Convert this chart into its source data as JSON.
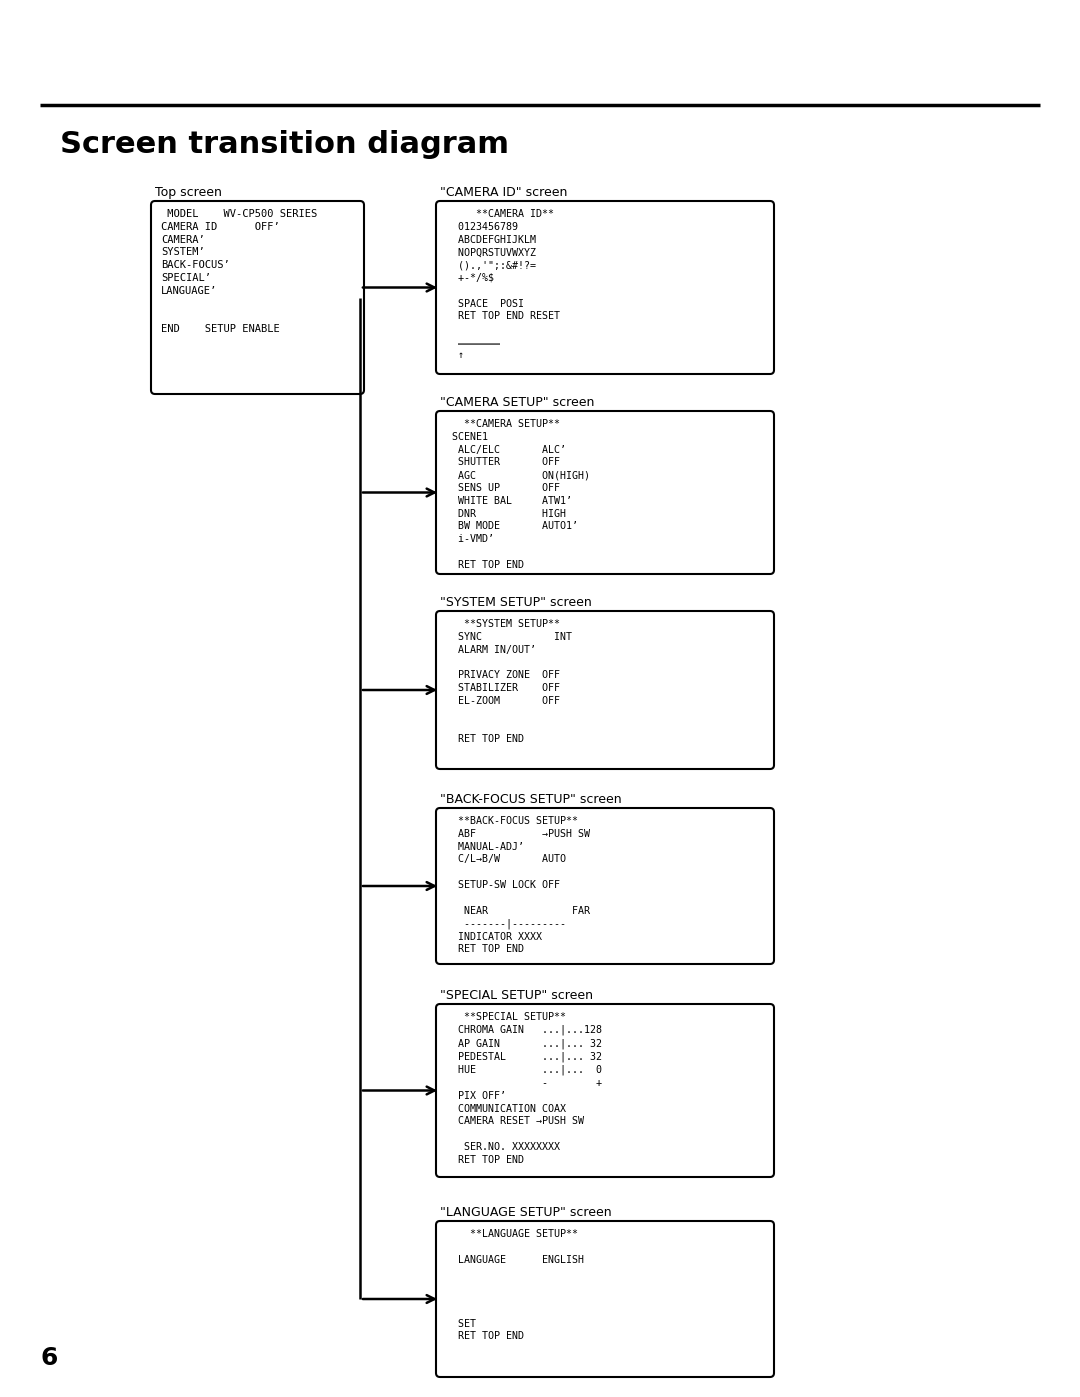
{
  "title": "Screen transition diagram",
  "page_number": "6",
  "background_color": "#ffffff",
  "top_screen_label": "Top screen",
  "top_screen_content": " MODEL    WV-CP500 SERIES\nCAMERA ID      OFF’\nCAMERA’\nSYSTEM’\nBACK-FOCUS’\nSPECIAL’\nLANGUAGE’\n\n\nEND    SETUP ENABLE",
  "screens": [
    {
      "label": "\"CAMERA ID\" screen",
      "content": "     **CAMERA ID**\n  0123456789\n  ABCDEFGHIJKLM\n  NOPQRSTUVWXYZ\n  ().,'\";:&#!?=\n  +-*/%$\n\n  SPACE  POSI\n  RET TOP END RESET\n\n  …………………\n  ↑"
    },
    {
      "label": "\"CAMERA SETUP\" screen",
      "content": "   **CAMERA SETUP**\n SCENE1\n  ALC/ELC       ALC’\n  SHUTTER       OFF\n  AGC           ON(HIGH)\n  SENS UP       OFF\n  WHITE BAL     ATW1’\n  DNR           HIGH\n  BW MODE       AUTO1’\n  i-VMD’\n\n  RET TOP END"
    },
    {
      "label": "\"SYSTEM SETUP\" screen",
      "content": "   **SYSTEM SETUP**\n  SYNC            INT\n  ALARM IN/OUT’\n\n  PRIVACY ZONE  OFF\n  STABILIZER    OFF\n  EL-ZOOM       OFF\n\n\n  RET TOP END"
    },
    {
      "label": "\"BACK-FOCUS SETUP\" screen",
      "content": "  **BACK-FOCUS SETUP**\n  ABF           →PUSH SW\n  MANUAL-ADJ’\n  C/L→B/W       AUTO\n\n  SETUP-SW LOCK OFF\n\n   NEAR              FAR\n   -------|---------\n  INDICATOR XXXX\n  RET TOP END"
    },
    {
      "label": "\"SPECIAL SETUP\" screen",
      "content": "   **SPECIAL SETUP**\n  CHROMA GAIN   ...|...128\n  AP GAIN       ...|... 32\n  PEDESTAL      ...|... 32\n  HUE           ...|...  0\n                -        +\n  PIX OFF’\n  COMMUNICATION COAX\n  CAMERA RESET →PUSH SW\n\n   SER.NO. XXXXXXXX\n  RET TOP END"
    },
    {
      "label": "\"LANGUAGE SETUP\" screen",
      "content": "    **LANGUAGE SETUP**\n\n  LANGUAGE      ENGLISH\n\n\n\n\n  SET\n  RET TOP END"
    }
  ]
}
